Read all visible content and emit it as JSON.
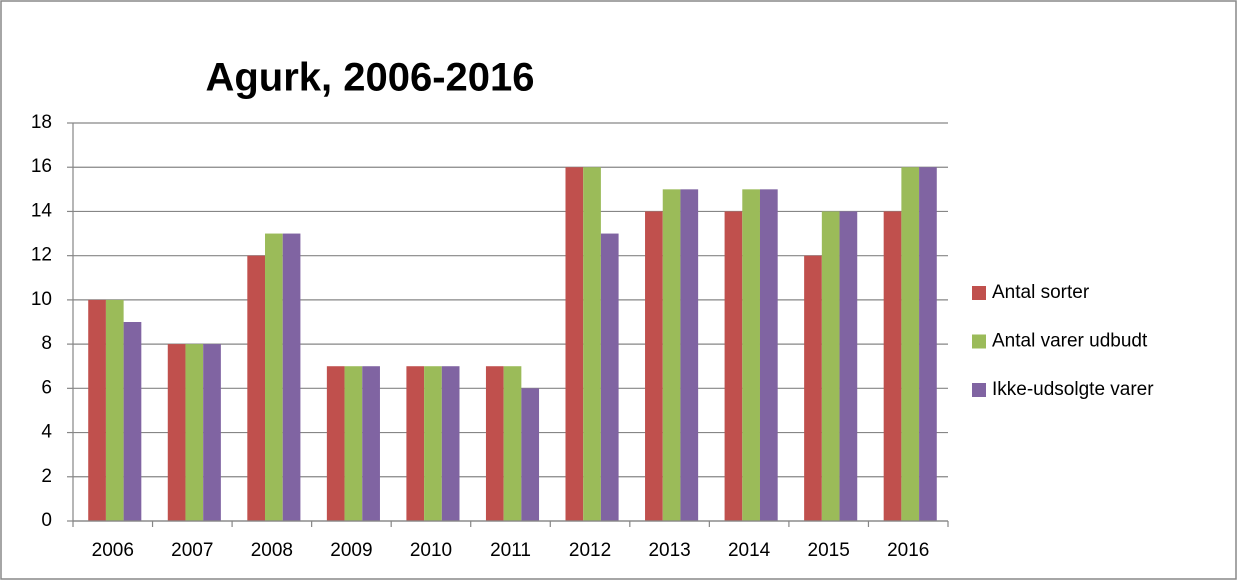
{
  "chart_data": {
    "type": "bar",
    "title": "Agurk, 2006-2016",
    "categories": [
      "2006",
      "2007",
      "2008",
      "2009",
      "2010",
      "2011",
      "2012",
      "2013",
      "2014",
      "2015",
      "2016"
    ],
    "series": [
      {
        "name": "Antal sorter",
        "color": "#c0504d",
        "values": [
          10,
          8,
          12,
          7,
          7,
          7,
          16,
          14,
          14,
          12,
          14
        ]
      },
      {
        "name": "Antal varer udbudt",
        "color": "#9bbb59",
        "values": [
          10,
          8,
          13,
          7,
          7,
          7,
          16,
          15,
          15,
          14,
          16
        ]
      },
      {
        "name": "Ikke-udsolgte varer",
        "color": "#8064a2",
        "values": [
          9,
          8,
          13,
          7,
          7,
          6,
          13,
          15,
          15,
          14,
          16
        ]
      }
    ],
    "ylim": [
      0,
      18
    ],
    "yticks": [
      0,
      2,
      4,
      6,
      8,
      10,
      12,
      14,
      16,
      18
    ],
    "grid": true,
    "legend": "right"
  }
}
